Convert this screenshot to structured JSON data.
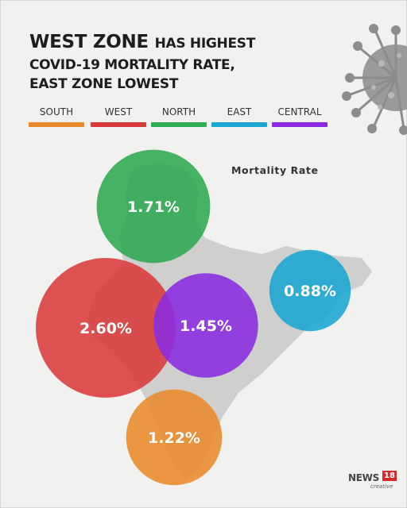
{
  "title": {
    "line1_bold": "WEST ZONE",
    "line1_rest": "HAS HIGHEST",
    "line2": "COVID-19 MORTALITY RATE,",
    "line3": "EAST ZONE LOWEST"
  },
  "legend": [
    {
      "label": "SOUTH",
      "color": "#e98a2a"
    },
    {
      "label": "WEST",
      "color": "#d93a3a"
    },
    {
      "label": "NORTH",
      "color": "#2eaa50"
    },
    {
      "label": "EAST",
      "color": "#19a6d3"
    },
    {
      "label": "CENTRAL",
      "color": "#8a2be2"
    }
  ],
  "chart_data": {
    "type": "bubble",
    "title": "Mortality Rate",
    "unit": "%",
    "zones": [
      {
        "zone": "NORTH",
        "value": 1.71,
        "label": "1.71%",
        "color": "#2eaa50"
      },
      {
        "zone": "WEST",
        "value": 2.6,
        "label": "2.60%",
        "color": "#d93a3a"
      },
      {
        "zone": "CENTRAL",
        "value": 1.45,
        "label": "1.45%",
        "color": "#8a2be2"
      },
      {
        "zone": "EAST",
        "value": 0.88,
        "label": "0.88%",
        "color": "#19a6d3"
      },
      {
        "zone": "SOUTH",
        "value": 1.22,
        "label": "1.22%",
        "color": "#e98a2a"
      }
    ]
  },
  "branding": {
    "logo_text": "NEWS",
    "logo_number": "18",
    "logo_sub": "creative"
  },
  "icons": [
    "virus-icon",
    "india-map-silhouette"
  ]
}
